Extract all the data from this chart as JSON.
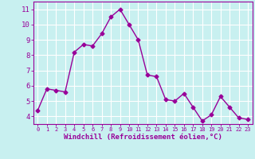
{
  "x": [
    0,
    1,
    2,
    3,
    4,
    5,
    6,
    7,
    8,
    9,
    10,
    11,
    12,
    13,
    14,
    15,
    16,
    17,
    18,
    19,
    20,
    21,
    22,
    23
  ],
  "y": [
    4.4,
    5.8,
    5.7,
    5.6,
    8.2,
    8.7,
    8.6,
    9.4,
    10.5,
    11.0,
    10.0,
    9.0,
    6.7,
    6.6,
    5.1,
    5.0,
    5.5,
    4.6,
    3.7,
    4.1,
    5.3,
    4.6,
    3.9,
    3.8
  ],
  "line_color": "#990099",
  "marker": "D",
  "markersize": 2.5,
  "linewidth": 1.0,
  "xlabel": "Windchill (Refroidissement éolien,°C)",
  "xlabel_fontsize": 6.5,
  "background_color": "#c8f0f0",
  "grid_color": "#ffffff",
  "tick_color": "#990099",
  "label_color": "#990099",
  "ylim": [
    3.5,
    11.5
  ],
  "xlim": [
    -0.5,
    23.5
  ],
  "yticks": [
    4,
    5,
    6,
    7,
    8,
    9,
    10,
    11
  ],
  "xticks": [
    0,
    1,
    2,
    3,
    4,
    5,
    6,
    7,
    8,
    9,
    10,
    11,
    12,
    13,
    14,
    15,
    16,
    17,
    18,
    19,
    20,
    21,
    22,
    23
  ],
  "ytick_fontsize": 6.5,
  "xtick_fontsize": 5.0
}
